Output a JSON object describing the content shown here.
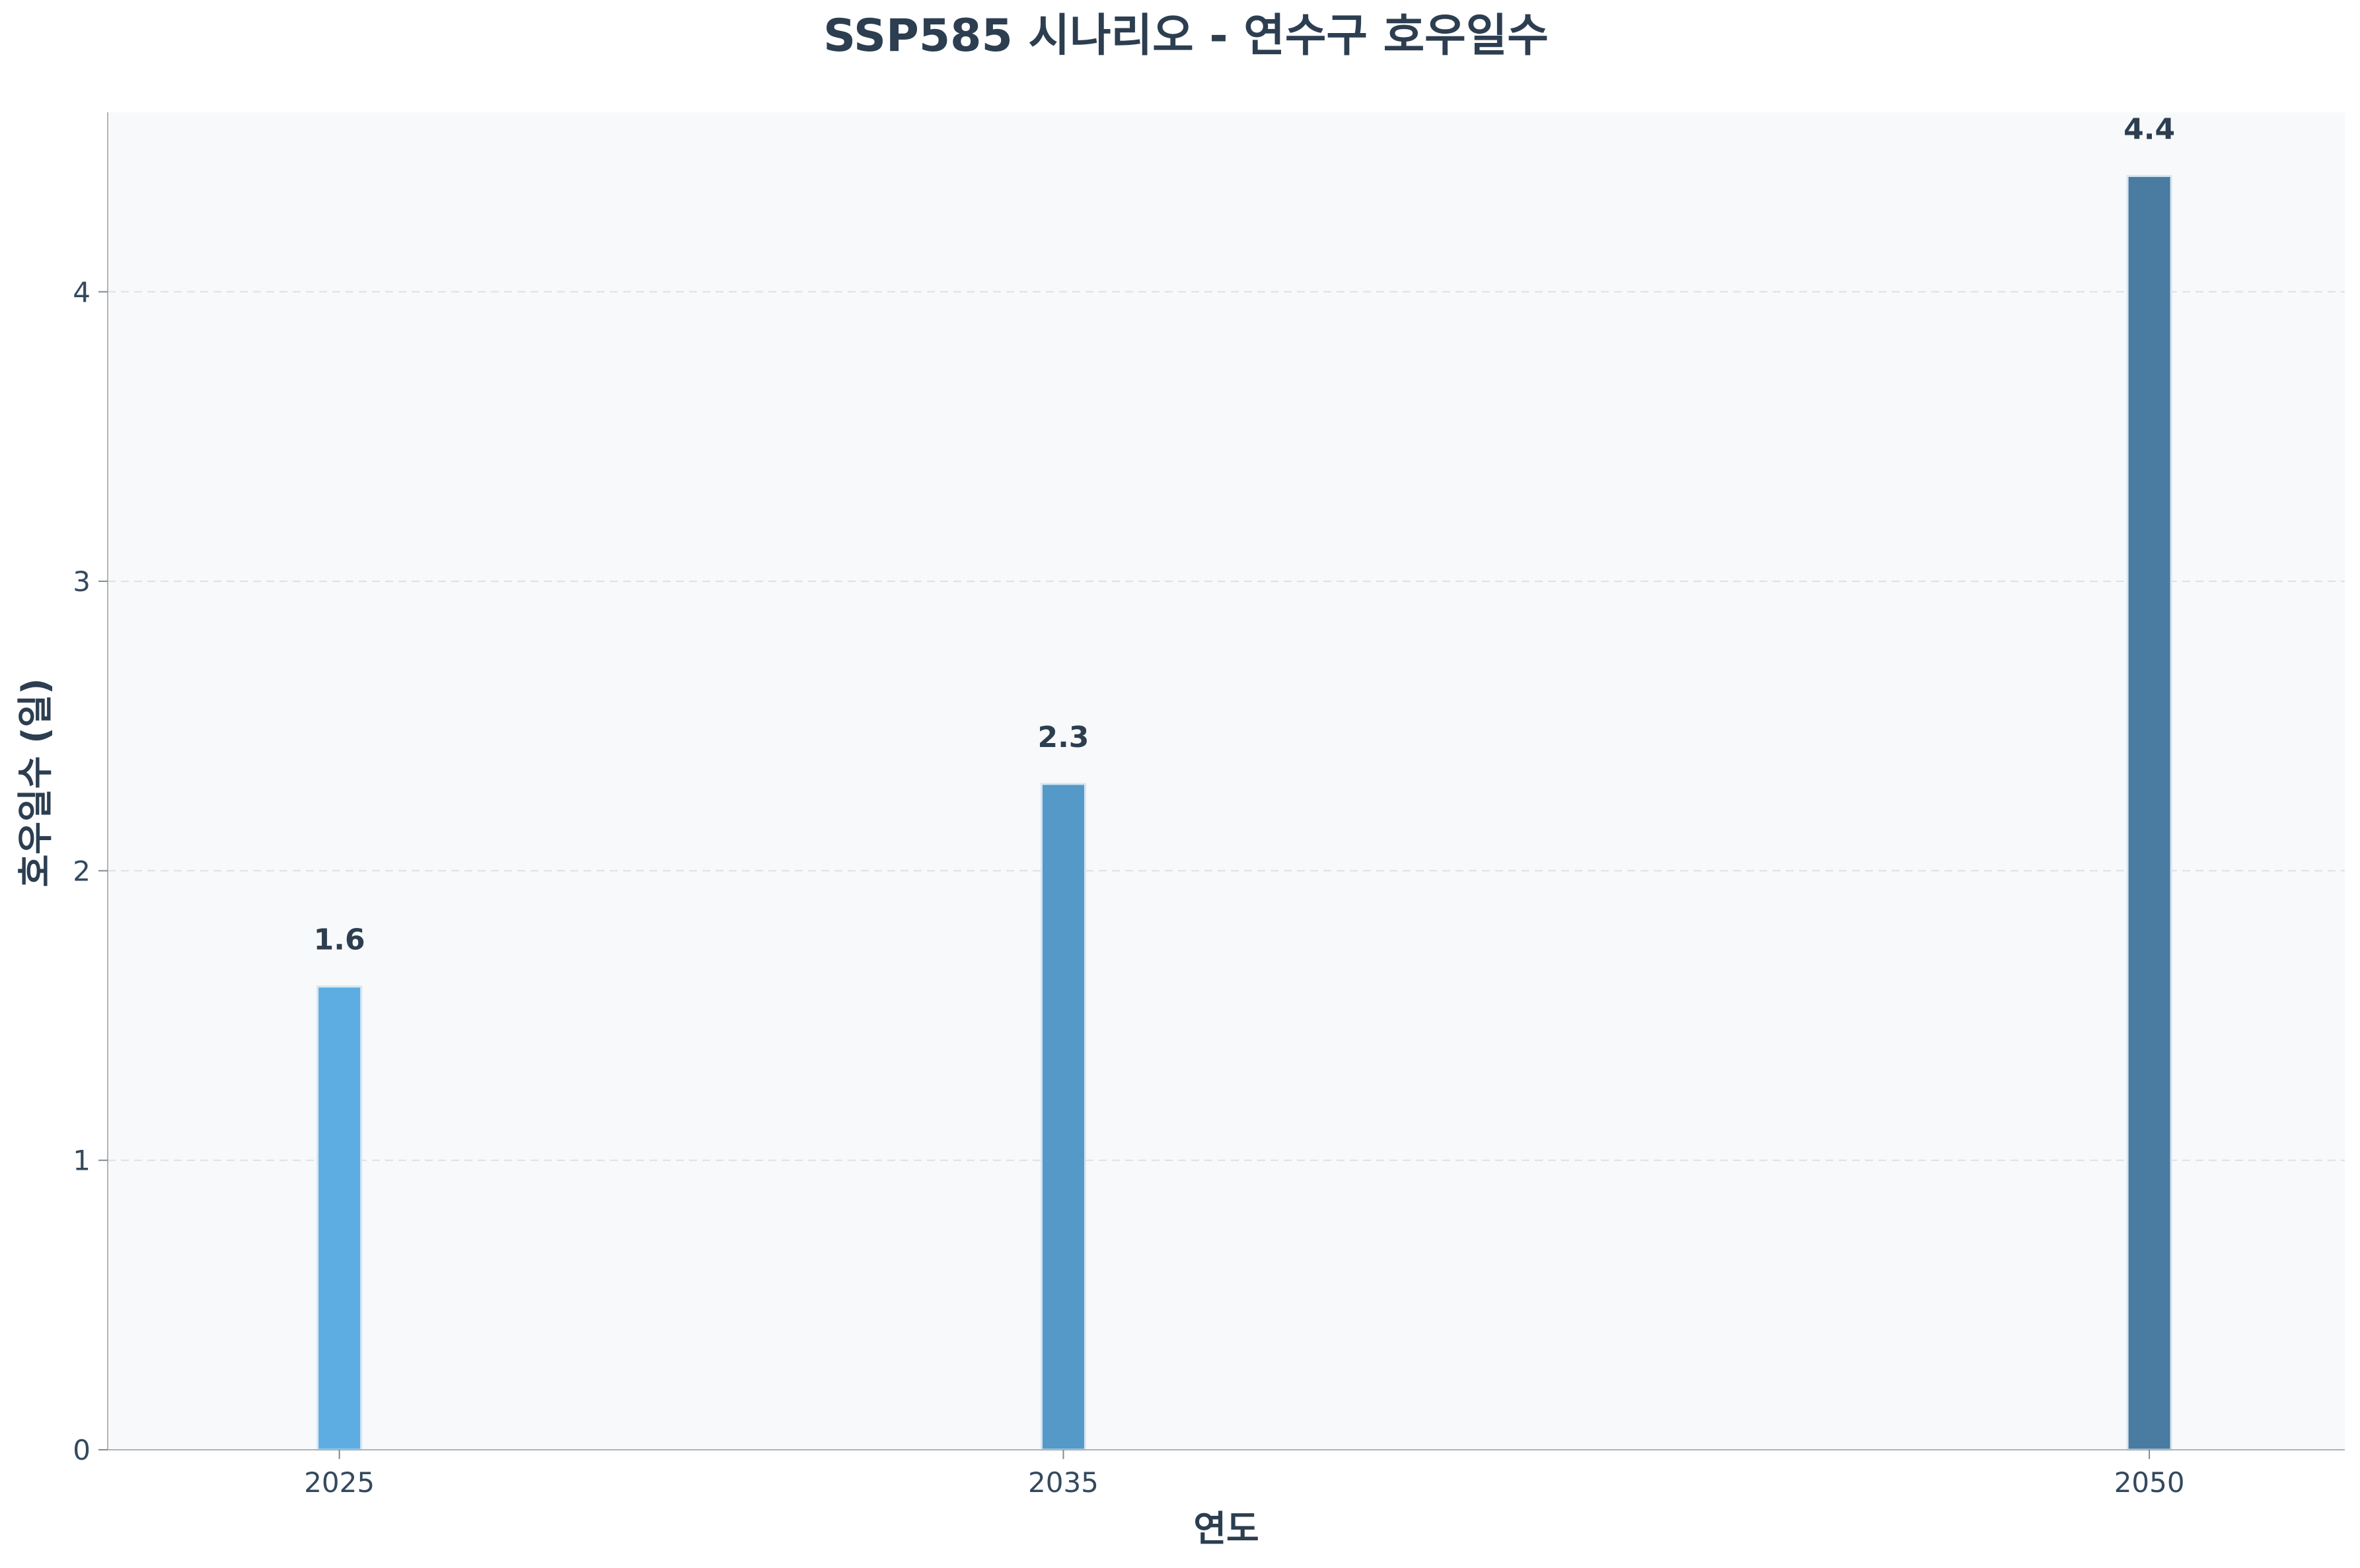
{
  "chart_data": {
    "type": "bar",
    "title": "SSP585 시나리오 - 연수구 호우일수",
    "xlabel": "연도",
    "ylabel": "호우일수 (일)",
    "x": [
      2025,
      2035,
      2050
    ],
    "categories": [
      "2025",
      "2035",
      "2050"
    ],
    "values": [
      1.6,
      2.3,
      4.4
    ],
    "value_labels": [
      "1.6",
      "2.3",
      "4.4"
    ],
    "xlim": [
      2021.8,
      2052.7
    ],
    "ylim": [
      0,
      4.62
    ],
    "yticks": [
      0,
      1,
      2,
      3,
      4
    ],
    "ytick_labels": [
      "0",
      "1",
      "2",
      "3",
      "4"
    ],
    "grid": "y-dashed",
    "bar_colors": [
      "#5dade2",
      "#5499c7",
      "#4a7ba0"
    ],
    "plot_background": "#f8f9fa"
  }
}
